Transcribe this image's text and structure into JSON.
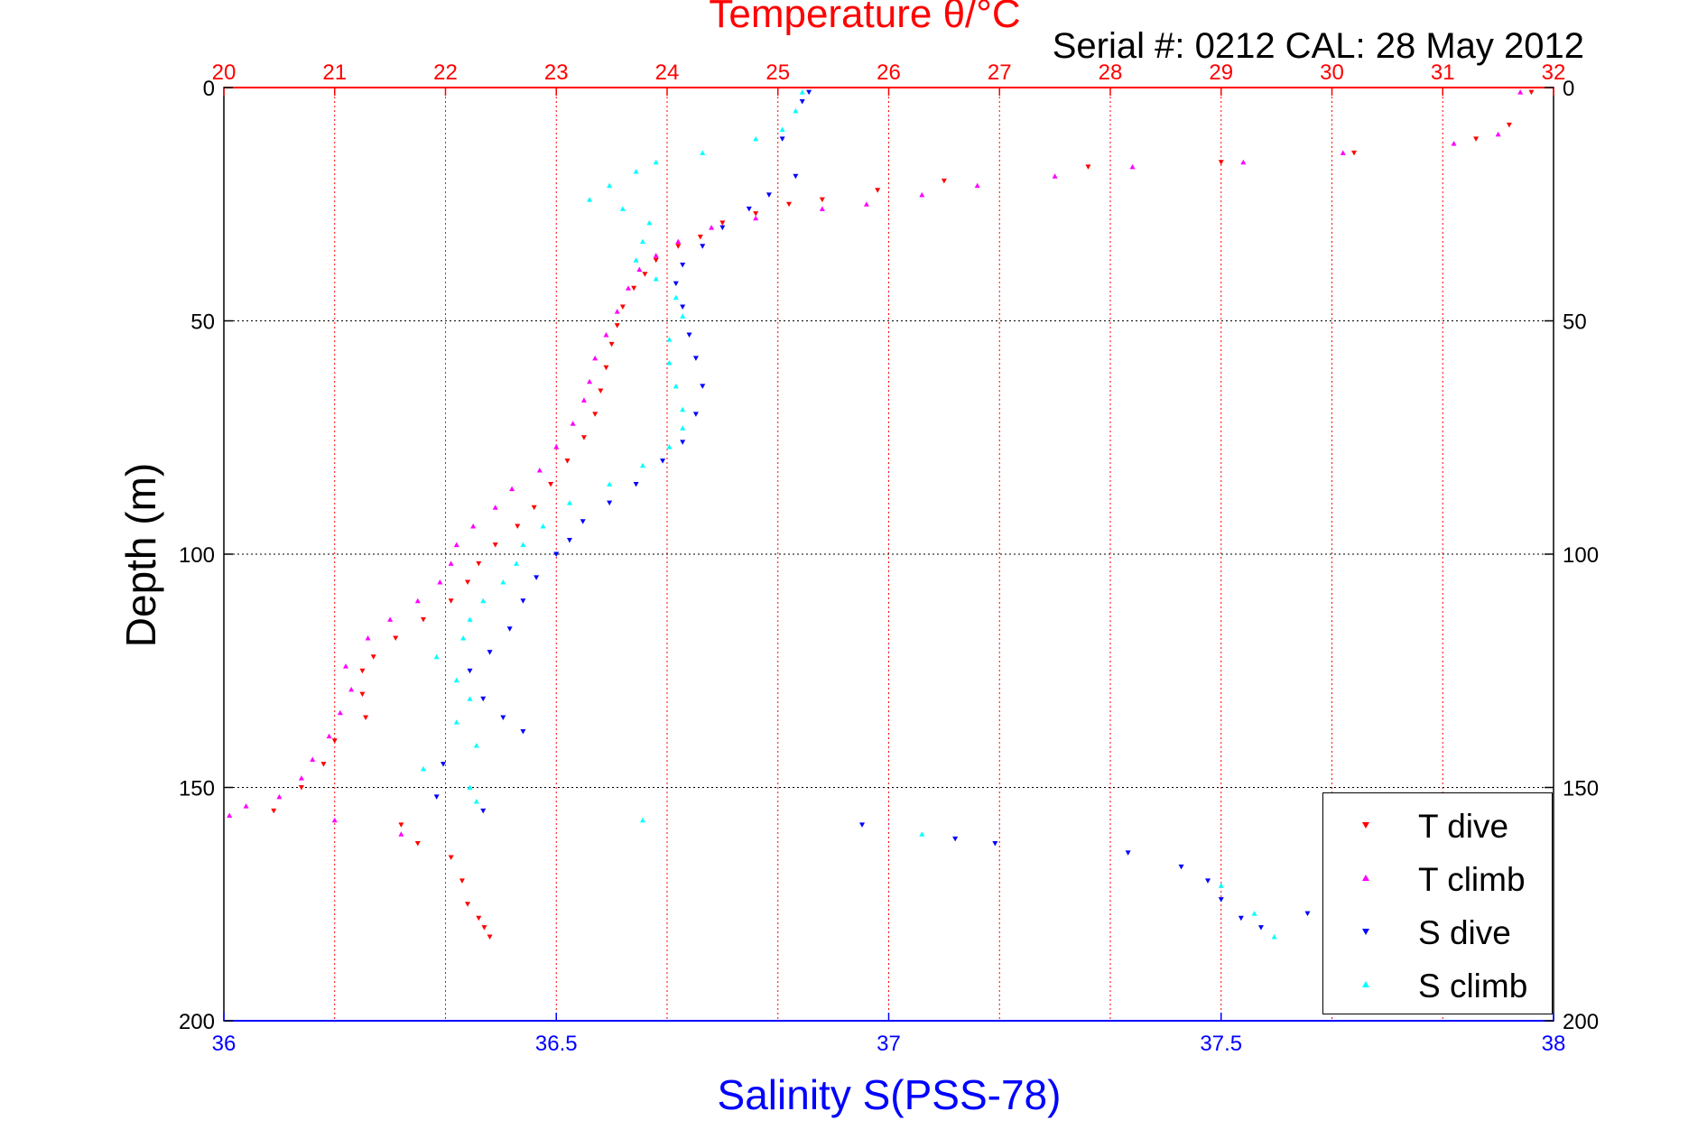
{
  "chart_data": {
    "type": "scatter",
    "title": "Temperature θ/°C",
    "subtitle": "Serial #: 0212  CAL: 28 May 2012",
    "ylabel": "Depth (m)",
    "xlabel_bottom": "Salinity S(PSS-78)",
    "xlabel_top": "Temperature θ/°C",
    "ylim": [
      0,
      200
    ],
    "y_reversed": true,
    "y_ticks": [
      "0",
      "50",
      "100",
      "150",
      "200"
    ],
    "x_bottom_lim": [
      36,
      38
    ],
    "x_bottom_ticks": [
      "36",
      "36.5",
      "37",
      "37.5",
      "38"
    ],
    "x_top_lim": [
      20,
      32
    ],
    "x_top_ticks": [
      "20",
      "21",
      "22",
      "23",
      "24",
      "25",
      "26",
      "27",
      "28",
      "29",
      "30",
      "31",
      "32"
    ],
    "grid": true,
    "legend_position": "bottom-right",
    "series": [
      {
        "name": "T dive",
        "axis": "top",
        "marker": "triangle-down",
        "color": "#ff0000",
        "points": [
          [
            31.8,
            1
          ],
          [
            31.6,
            8
          ],
          [
            31.3,
            11
          ],
          [
            30.2,
            14
          ],
          [
            29.0,
            16
          ],
          [
            27.8,
            17
          ],
          [
            26.5,
            20
          ],
          [
            25.9,
            22
          ],
          [
            25.4,
            24
          ],
          [
            25.1,
            25
          ],
          [
            24.8,
            27
          ],
          [
            24.5,
            29
          ],
          [
            24.3,
            32
          ],
          [
            24.1,
            34
          ],
          [
            23.9,
            37
          ],
          [
            23.8,
            40
          ],
          [
            23.7,
            43
          ],
          [
            23.6,
            47
          ],
          [
            23.55,
            51
          ],
          [
            23.5,
            55
          ],
          [
            23.45,
            60
          ],
          [
            23.4,
            65
          ],
          [
            23.35,
            70
          ],
          [
            23.25,
            75
          ],
          [
            23.1,
            80
          ],
          [
            22.95,
            85
          ],
          [
            22.8,
            90
          ],
          [
            22.65,
            94
          ],
          [
            22.45,
            98
          ],
          [
            22.3,
            102
          ],
          [
            22.2,
            106
          ],
          [
            22.05,
            110
          ],
          [
            21.8,
            114
          ],
          [
            21.55,
            118
          ],
          [
            21.35,
            122
          ],
          [
            21.25,
            125
          ],
          [
            21.25,
            130
          ],
          [
            21.28,
            135
          ],
          [
            21.0,
            140
          ],
          [
            20.9,
            145
          ],
          [
            20.7,
            150
          ],
          [
            20.45,
            155
          ],
          [
            21.6,
            158
          ],
          [
            21.75,
            162
          ],
          [
            22.05,
            165
          ],
          [
            22.15,
            170
          ],
          [
            22.2,
            175
          ],
          [
            22.3,
            178
          ],
          [
            22.35,
            180
          ],
          [
            22.4,
            182
          ]
        ]
      },
      {
        "name": "T climb",
        "axis": "top",
        "marker": "triangle-up",
        "color": "#ff00ff",
        "points": [
          [
            31.7,
            1
          ],
          [
            31.5,
            10
          ],
          [
            31.1,
            12
          ],
          [
            30.1,
            14
          ],
          [
            29.2,
            16
          ],
          [
            28.2,
            17
          ],
          [
            27.5,
            19
          ],
          [
            26.8,
            21
          ],
          [
            26.3,
            23
          ],
          [
            25.8,
            25
          ],
          [
            25.4,
            26
          ],
          [
            24.8,
            28
          ],
          [
            24.4,
            30
          ],
          [
            24.1,
            33
          ],
          [
            23.9,
            36
          ],
          [
            23.75,
            39
          ],
          [
            23.65,
            43
          ],
          [
            23.55,
            48
          ],
          [
            23.45,
            53
          ],
          [
            23.35,
            58
          ],
          [
            23.3,
            63
          ],
          [
            23.25,
            67
          ],
          [
            23.15,
            72
          ],
          [
            23.0,
            77
          ],
          [
            22.85,
            82
          ],
          [
            22.6,
            86
          ],
          [
            22.45,
            90
          ],
          [
            22.25,
            94
          ],
          [
            22.1,
            98
          ],
          [
            22.05,
            102
          ],
          [
            21.95,
            106
          ],
          [
            21.75,
            110
          ],
          [
            21.5,
            114
          ],
          [
            21.3,
            118
          ],
          [
            21.1,
            124
          ],
          [
            21.15,
            129
          ],
          [
            21.05,
            134
          ],
          [
            20.95,
            139
          ],
          [
            20.8,
            144
          ],
          [
            20.7,
            148
          ],
          [
            20.5,
            152
          ],
          [
            20.2,
            154
          ],
          [
            20.05,
            156
          ],
          [
            21.0,
            157
          ],
          [
            21.6,
            160
          ]
        ]
      },
      {
        "name": "S dive",
        "axis": "bottom",
        "marker": "triangle-down",
        "color": "#0000ff",
        "points": [
          [
            36.88,
            1
          ],
          [
            36.87,
            3
          ],
          [
            36.84,
            11
          ],
          [
            36.86,
            19
          ],
          [
            36.82,
            23
          ],
          [
            36.79,
            26
          ],
          [
            36.75,
            30
          ],
          [
            36.72,
            34
          ],
          [
            36.69,
            38
          ],
          [
            36.68,
            42
          ],
          [
            36.69,
            47
          ],
          [
            36.7,
            53
          ],
          [
            36.71,
            58
          ],
          [
            36.72,
            64
          ],
          [
            36.71,
            70
          ],
          [
            36.69,
            76
          ],
          [
            36.66,
            80
          ],
          [
            36.62,
            85
          ],
          [
            36.58,
            89
          ],
          [
            36.54,
            93
          ],
          [
            36.52,
            97
          ],
          [
            36.5,
            100
          ],
          [
            36.47,
            105
          ],
          [
            36.45,
            110
          ],
          [
            36.43,
            116
          ],
          [
            36.4,
            121
          ],
          [
            36.37,
            125
          ],
          [
            36.39,
            131
          ],
          [
            36.42,
            135
          ],
          [
            36.45,
            138
          ],
          [
            36.33,
            145
          ],
          [
            36.32,
            152
          ],
          [
            36.39,
            155
          ],
          [
            36.96,
            158
          ],
          [
            37.1,
            161
          ],
          [
            37.16,
            162
          ],
          [
            37.36,
            164
          ],
          [
            37.44,
            167
          ],
          [
            37.48,
            170
          ],
          [
            37.5,
            174
          ],
          [
            37.53,
            178
          ],
          [
            37.56,
            180
          ],
          [
            37.63,
            177
          ]
        ]
      },
      {
        "name": "S climb",
        "axis": "bottom",
        "marker": "triangle-up",
        "color": "#00ffff",
        "points": [
          [
            36.87,
            1
          ],
          [
            36.86,
            5
          ],
          [
            36.84,
            9
          ],
          [
            36.8,
            11
          ],
          [
            36.72,
            14
          ],
          [
            36.65,
            16
          ],
          [
            36.62,
            18
          ],
          [
            36.58,
            21
          ],
          [
            36.55,
            24
          ],
          [
            36.6,
            26
          ],
          [
            36.64,
            29
          ],
          [
            36.63,
            33
          ],
          [
            36.62,
            37
          ],
          [
            36.65,
            41
          ],
          [
            36.68,
            45
          ],
          [
            36.69,
            49
          ],
          [
            36.67,
            54
          ],
          [
            36.67,
            59
          ],
          [
            36.68,
            64
          ],
          [
            36.69,
            69
          ],
          [
            36.69,
            73
          ],
          [
            36.67,
            77
          ],
          [
            36.63,
            81
          ],
          [
            36.58,
            85
          ],
          [
            36.52,
            89
          ],
          [
            36.48,
            94
          ],
          [
            36.45,
            98
          ],
          [
            36.44,
            102
          ],
          [
            36.42,
            106
          ],
          [
            36.39,
            110
          ],
          [
            36.37,
            114
          ],
          [
            36.36,
            118
          ],
          [
            36.32,
            122
          ],
          [
            36.35,
            127
          ],
          [
            36.37,
            131
          ],
          [
            36.35,
            136
          ],
          [
            36.38,
            141
          ],
          [
            36.3,
            146
          ],
          [
            36.37,
            150
          ],
          [
            36.38,
            153
          ],
          [
            36.63,
            157
          ],
          [
            37.05,
            160
          ],
          [
            37.5,
            171
          ],
          [
            37.55,
            177
          ],
          [
            37.58,
            182
          ]
        ]
      }
    ]
  },
  "legend": {
    "items": [
      {
        "label": "T dive",
        "color": "#ff0000",
        "marker": "triangle-down"
      },
      {
        "label": "T climb",
        "color": "#ff00ff",
        "marker": "triangle-up"
      },
      {
        "label": "S dive",
        "color": "#0000ff",
        "marker": "triangle-down"
      },
      {
        "label": "S climb",
        "color": "#00ffff",
        "marker": "triangle-up"
      }
    ]
  },
  "colors": {
    "temperature_axis": "#ff0000",
    "salinity_axis": "#0000ff",
    "frame": "#000000"
  }
}
